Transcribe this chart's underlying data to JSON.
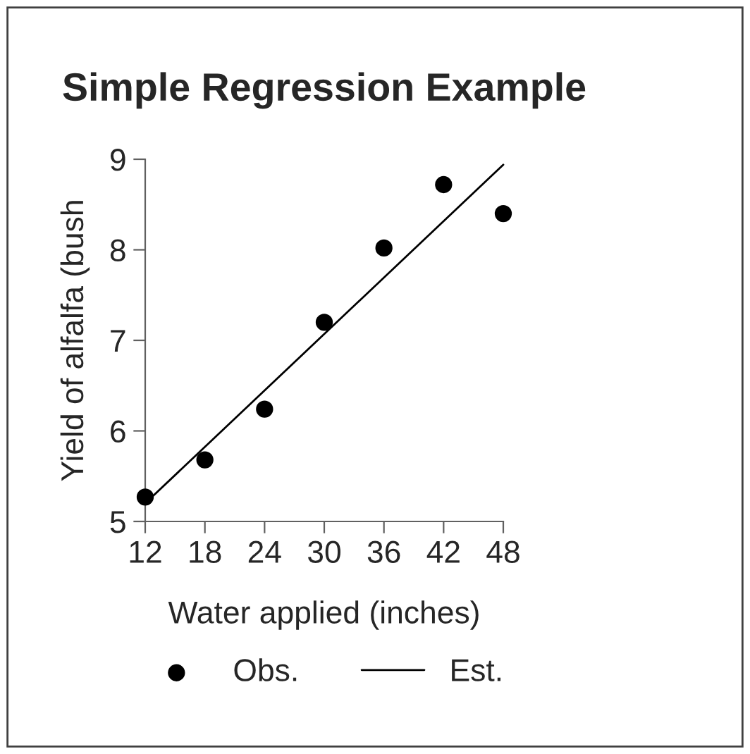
{
  "chart_data": {
    "type": "scatter",
    "title": "Simple Regression Example",
    "xlabel": "Water applied (inches)",
    "ylabel": "Yield of alfalfa (bush",
    "x": [
      12,
      18,
      24,
      30,
      36,
      42,
      48
    ],
    "series": [
      {
        "name": "Obs.",
        "color": "#000000",
        "marker": "circle",
        "values": [
          5.27,
          5.68,
          6.24,
          7.2,
          8.02,
          8.72,
          8.4
        ]
      },
      {
        "name": "Est.",
        "type": "line",
        "color": "#000000",
        "marker": "none",
        "line_style": "solid",
        "x": [
          12,
          48
        ],
        "values": [
          5.2,
          8.94
        ]
      }
    ],
    "xlim": [
      12,
      48
    ],
    "ylim": [
      5,
      9
    ],
    "xticks": [
      12,
      18,
      24,
      30,
      36,
      42,
      48
    ],
    "yticks": [
      5,
      6,
      7,
      8,
      9
    ],
    "grid": false,
    "legend": "bottom"
  }
}
